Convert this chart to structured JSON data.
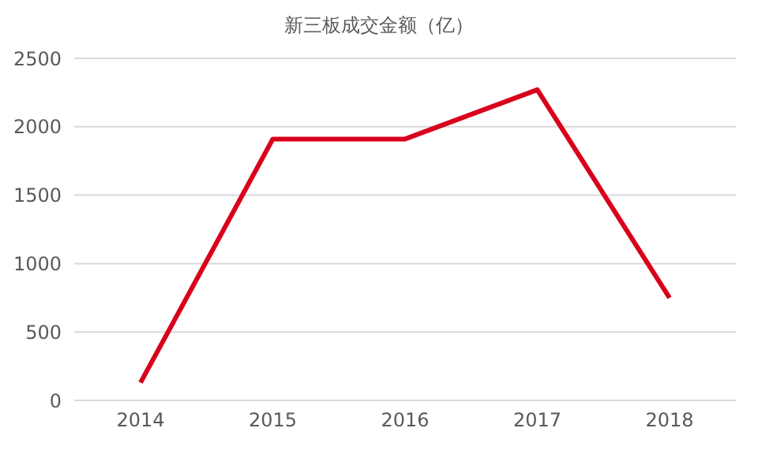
{
  "chart_data": {
    "type": "line",
    "title": "新三板成交金额（亿）",
    "categories": [
      "2014",
      "2015",
      "2016",
      "2017",
      "2018"
    ],
    "series": [
      {
        "color": "#d9001b",
        "values": [
          130,
          1910,
          1910,
          2270,
          750
        ]
      }
    ],
    "ylim": [
      0,
      2500
    ],
    "yticks": [
      0,
      500,
      1000,
      1500,
      2000,
      2500
    ],
    "grid": "y",
    "legend": false,
    "marker": "none",
    "line_style": "solid"
  }
}
